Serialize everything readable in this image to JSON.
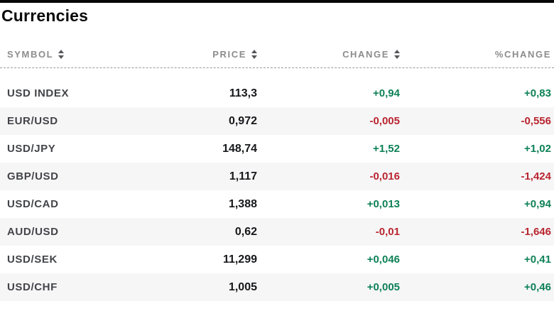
{
  "page": {
    "title": "Currencies"
  },
  "table": {
    "columns": [
      {
        "label": "SYMBOL",
        "sortable": true,
        "align": "left"
      },
      {
        "label": "PRICE",
        "sortable": true,
        "align": "right"
      },
      {
        "label": "CHANGE",
        "sortable": true,
        "align": "right"
      },
      {
        "label": "%CHANGE",
        "sortable": false,
        "align": "right"
      }
    ],
    "rows": [
      {
        "symbol": "USD INDEX",
        "price": "113,3",
        "change": "+0,94",
        "pct_change": "+0,83",
        "direction": "up"
      },
      {
        "symbol": "EUR/USD",
        "price": "0,972",
        "change": "-0,005",
        "pct_change": "-0,556",
        "direction": "down"
      },
      {
        "symbol": "USD/JPY",
        "price": "148,74",
        "change": "+1,52",
        "pct_change": "+1,02",
        "direction": "up"
      },
      {
        "symbol": "GBP/USD",
        "price": "1,117",
        "change": "-0,016",
        "pct_change": "-1,424",
        "direction": "down"
      },
      {
        "symbol": "USD/CAD",
        "price": "1,388",
        "change": "+0,013",
        "pct_change": "+0,94",
        "direction": "up"
      },
      {
        "symbol": "AUD/USD",
        "price": "0,62",
        "change": "-0,01",
        "pct_change": "-1,646",
        "direction": "down"
      },
      {
        "symbol": "USD/SEK",
        "price": "11,299",
        "change": "+0,046",
        "pct_change": "+0,41",
        "direction": "up"
      },
      {
        "symbol": "USD/CHF",
        "price": "1,005",
        "change": "+0,005",
        "pct_change": "+0,46",
        "direction": "up"
      }
    ]
  },
  "colors": {
    "positive": "#0e8158",
    "negative": "#b9252f",
    "row_stripe": "#f6f6f7",
    "header_text": "#8c8c8c",
    "top_bar": "#070707"
  }
}
